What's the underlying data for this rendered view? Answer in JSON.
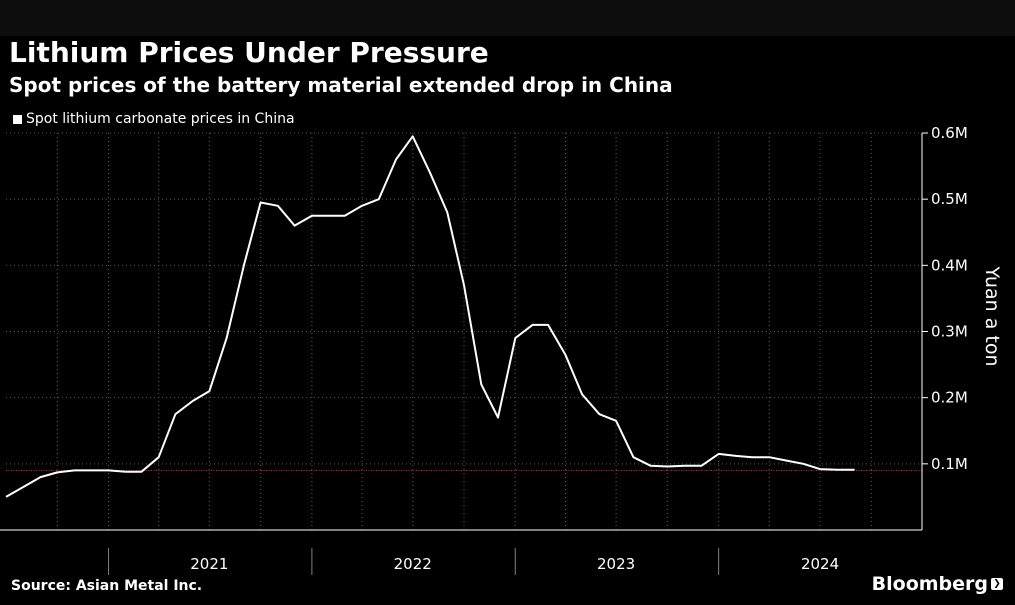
{
  "header": {
    "title": "Lithium Prices Under Pressure",
    "subtitle": "Spot prices of the battery material extended drop in China"
  },
  "footer": {
    "source": "Source: Asian Metal Inc.",
    "brand": "Bloomberg"
  },
  "colors": {
    "background": "#000000",
    "line": "#ffffff",
    "grid": "#5a5a5a",
    "reference_line": "#e0202a"
  },
  "chart_data": {
    "type": "line",
    "title": "Lithium Prices Under Pressure",
    "subtitle": "Spot prices of the battery material extended drop in China",
    "ylabel": "Yuan a ton",
    "xlabel": "",
    "legend": {
      "position": "top-left",
      "entries": [
        "Spot lithium carbonate prices in China"
      ]
    },
    "grid": true,
    "ylim": [
      0,
      600000
    ],
    "yticks": [
      100000,
      200000,
      300000,
      400000,
      500000,
      600000
    ],
    "ytick_labels": [
      "0.1M",
      "0.2M",
      "0.3M",
      "0.4M",
      "0.5M",
      "0.6M"
    ],
    "xlim": [
      "2020-07-01",
      "2024-12-31"
    ],
    "xtick_labels": [
      {
        "label": "2021",
        "date": "2021-07-01"
      },
      {
        "label": "2022",
        "date": "2022-07-01"
      },
      {
        "label": "2023",
        "date": "2023-07-01"
      },
      {
        "label": "2024",
        "date": "2024-07-01"
      }
    ],
    "reference_line": {
      "y": 90000
    },
    "series": [
      {
        "name": "Spot lithium carbonate prices in China",
        "x": [
          "2020-07-01",
          "2020-08-01",
          "2020-09-01",
          "2020-10-01",
          "2020-11-01",
          "2020-12-01",
          "2021-01-01",
          "2021-02-01",
          "2021-03-01",
          "2021-04-01",
          "2021-05-01",
          "2021-06-01",
          "2021-07-01",
          "2021-08-01",
          "2021-09-01",
          "2021-10-01",
          "2021-11-01",
          "2021-12-01",
          "2022-01-01",
          "2022-02-01",
          "2022-03-01",
          "2022-04-01",
          "2022-05-01",
          "2022-06-01",
          "2022-07-01",
          "2022-08-01",
          "2022-09-01",
          "2022-10-01",
          "2022-11-01",
          "2022-12-01",
          "2023-01-01",
          "2023-02-01",
          "2023-03-01",
          "2023-04-01",
          "2023-05-01",
          "2023-06-01",
          "2023-07-01",
          "2023-08-01",
          "2023-09-01",
          "2023-10-01",
          "2023-11-01",
          "2023-12-01",
          "2024-01-01",
          "2024-02-01",
          "2024-03-01",
          "2024-04-01",
          "2024-05-01",
          "2024-06-01",
          "2024-07-01",
          "2024-08-01",
          "2024-09-01"
        ],
        "values": [
          50000,
          65000,
          80000,
          87000,
          90000,
          90000,
          90000,
          88000,
          88000,
          110000,
          175000,
          195000,
          210000,
          290000,
          400000,
          495000,
          490000,
          460000,
          475000,
          475000,
          475000,
          490000,
          500000,
          560000,
          595000,
          540000,
          480000,
          370000,
          220000,
          170000,
          290000,
          310000,
          310000,
          265000,
          205000,
          175000,
          165000,
          110000,
          97000,
          96000,
          97000,
          97000,
          115000,
          112000,
          110000,
          110000,
          105000,
          100000,
          92000,
          91000,
          91000
        ]
      }
    ]
  }
}
